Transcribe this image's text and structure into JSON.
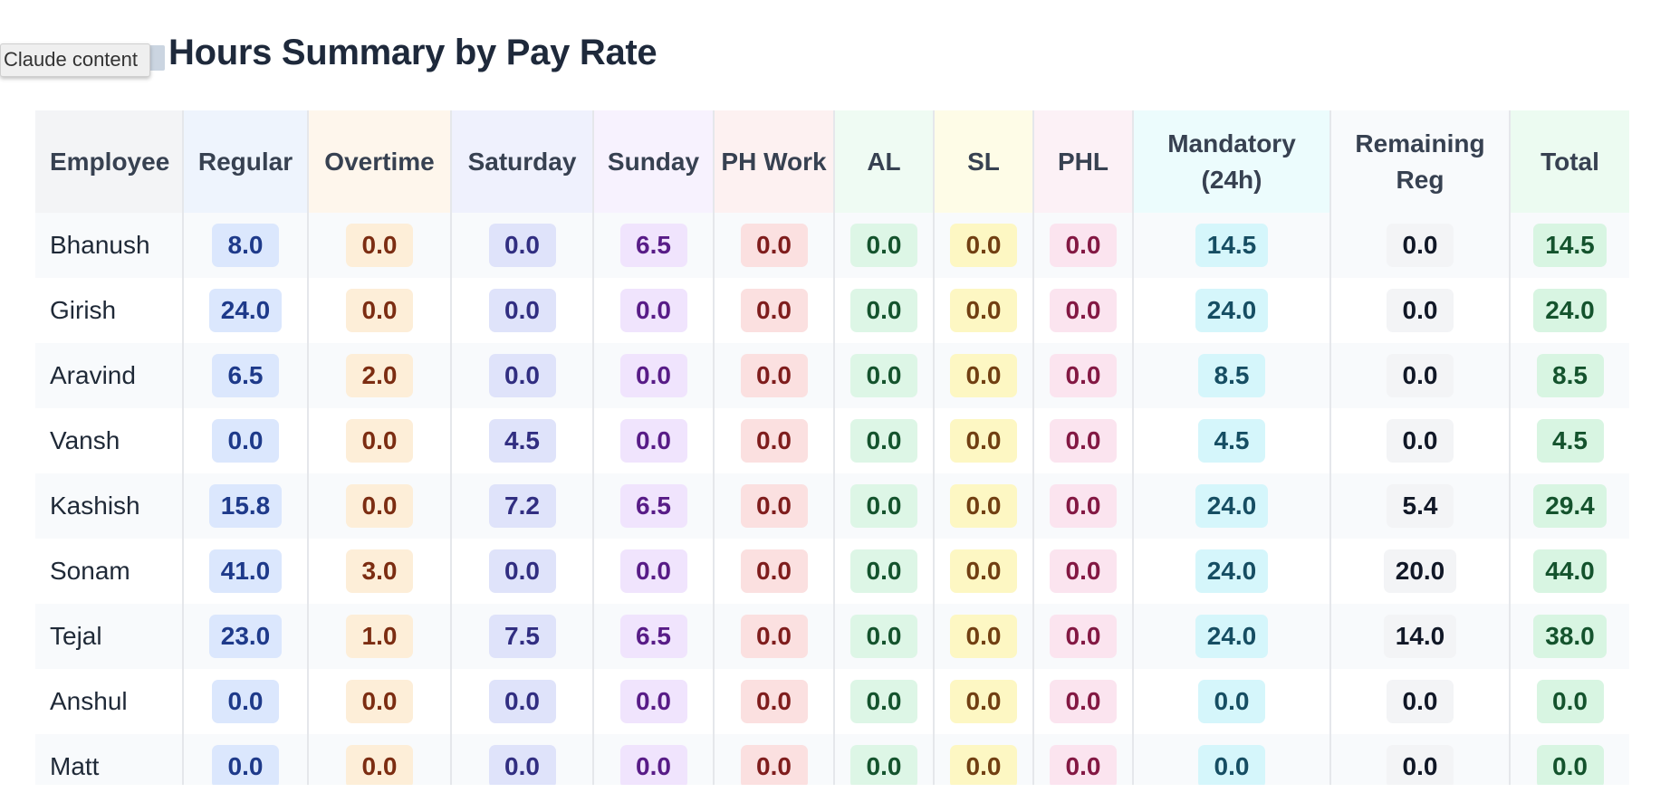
{
  "tooltip": {
    "label": "Claude content"
  },
  "page": {
    "title": "Hours Summary by Pay Rate"
  },
  "table": {
    "columns": [
      {
        "key": "employee",
        "label": "Employee",
        "header_bg": "#f3f4f6"
      },
      {
        "key": "regular",
        "label": "Regular",
        "header_bg": "#eef4fd"
      },
      {
        "key": "overtime",
        "label": "Overtime",
        "header_bg": "#fef6ec"
      },
      {
        "key": "saturday",
        "label": "Saturday",
        "header_bg": "#eff1fd"
      },
      {
        "key": "sunday",
        "label": "Sunday",
        "header_bg": "#f7f2fe"
      },
      {
        "key": "ph_work",
        "label": "PH Work",
        "header_bg": "#fdf1f1"
      },
      {
        "key": "al",
        "label": "AL",
        "header_bg": "#effbf3"
      },
      {
        "key": "sl",
        "label": "SL",
        "header_bg": "#fefce7"
      },
      {
        "key": "phl",
        "label": "PHL",
        "header_bg": "#fcf1f6"
      },
      {
        "key": "mandatory",
        "label": "Mandatory (24h)",
        "header_bg": "#ecfcfd"
      },
      {
        "key": "remaining",
        "label": "Remaining Reg",
        "header_bg": "#f8fafc"
      },
      {
        "key": "total",
        "label": "Total",
        "header_bg": "#ecfbf1"
      }
    ],
    "rows": [
      {
        "employee": "Bhanush",
        "regular": "8.0",
        "overtime": "0.0",
        "saturday": "0.0",
        "sunday": "6.5",
        "ph_work": "0.0",
        "al": "0.0",
        "sl": "0.0",
        "phl": "0.0",
        "mandatory": "14.5",
        "remaining": "0.0",
        "total": "14.5"
      },
      {
        "employee": "Girish",
        "regular": "24.0",
        "overtime": "0.0",
        "saturday": "0.0",
        "sunday": "0.0",
        "ph_work": "0.0",
        "al": "0.0",
        "sl": "0.0",
        "phl": "0.0",
        "mandatory": "24.0",
        "remaining": "0.0",
        "total": "24.0"
      },
      {
        "employee": "Aravind",
        "regular": "6.5",
        "overtime": "2.0",
        "saturday": "0.0",
        "sunday": "0.0",
        "ph_work": "0.0",
        "al": "0.0",
        "sl": "0.0",
        "phl": "0.0",
        "mandatory": "8.5",
        "remaining": "0.0",
        "total": "8.5"
      },
      {
        "employee": "Vansh",
        "regular": "0.0",
        "overtime": "0.0",
        "saturday": "4.5",
        "sunday": "0.0",
        "ph_work": "0.0",
        "al": "0.0",
        "sl": "0.0",
        "phl": "0.0",
        "mandatory": "4.5",
        "remaining": "0.0",
        "total": "4.5"
      },
      {
        "employee": "Kashish",
        "regular": "15.8",
        "overtime": "0.0",
        "saturday": "7.2",
        "sunday": "6.5",
        "ph_work": "0.0",
        "al": "0.0",
        "sl": "0.0",
        "phl": "0.0",
        "mandatory": "24.0",
        "remaining": "5.4",
        "total": "29.4"
      },
      {
        "employee": "Sonam",
        "regular": "41.0",
        "overtime": "3.0",
        "saturday": "0.0",
        "sunday": "0.0",
        "ph_work": "0.0",
        "al": "0.0",
        "sl": "0.0",
        "phl": "0.0",
        "mandatory": "24.0",
        "remaining": "20.0",
        "total": "44.0"
      },
      {
        "employee": "Tejal",
        "regular": "23.0",
        "overtime": "1.0",
        "saturday": "7.5",
        "sunday": "6.5",
        "ph_work": "0.0",
        "al": "0.0",
        "sl": "0.0",
        "phl": "0.0",
        "mandatory": "24.0",
        "remaining": "14.0",
        "total": "38.0"
      },
      {
        "employee": "Anshul",
        "regular": "0.0",
        "overtime": "0.0",
        "saturday": "0.0",
        "sunday": "0.0",
        "ph_work": "0.0",
        "al": "0.0",
        "sl": "0.0",
        "phl": "0.0",
        "mandatory": "0.0",
        "remaining": "0.0",
        "total": "0.0"
      },
      {
        "employee": "Matt",
        "regular": "0.0",
        "overtime": "0.0",
        "saturday": "0.0",
        "sunday": "0.0",
        "ph_work": "0.0",
        "al": "0.0",
        "sl": "0.0",
        "phl": "0.0",
        "mandatory": "0.0",
        "remaining": "0.0",
        "total": "0.0"
      }
    ]
  }
}
